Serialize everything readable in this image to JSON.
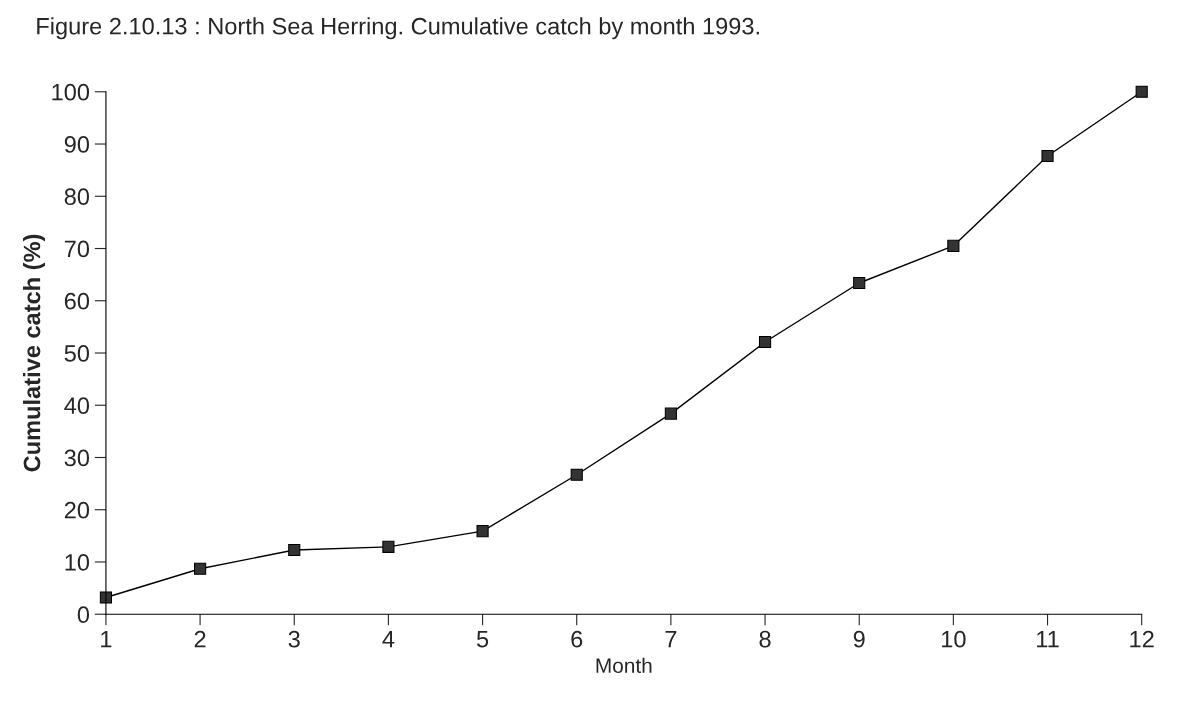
{
  "chart_data": {
    "type": "line",
    "xlabel": "Month",
    "ylabel": "Cumulative catch (%)",
    "annotations": [
      "Figure 2.10.13 : North Sea Herring. Cumulative catch by month 1993."
    ],
    "x": [
      1,
      2,
      3,
      4,
      5,
      6,
      7,
      8,
      9,
      10,
      11,
      12
    ],
    "series": [
      {
        "color": "#333333",
        "values": [
          3.2,
          8.7,
          12.3,
          12.9,
          15.9,
          26.7,
          38.4,
          52.1,
          63.4,
          70.5,
          87.7,
          100
        ]
      }
    ],
    "xlim": [
      1,
      12
    ],
    "xticks": [
      1,
      2,
      3,
      4,
      5,
      6,
      7,
      8,
      9,
      10,
      11,
      12
    ],
    "ylim": [
      0,
      100
    ],
    "yticks": [
      0,
      10,
      20,
      30,
      40,
      50,
      60,
      70,
      80,
      90,
      100
    ],
    "grid": false,
    "legend": false,
    "marker": "square",
    "line_style": "solid"
  }
}
